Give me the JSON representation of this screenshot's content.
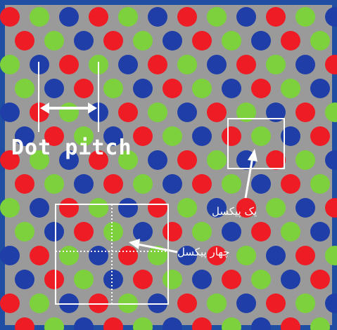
{
  "diagram": {
    "frame_color": "#1f4ea3",
    "background_color": "#9a9a9a",
    "dot_colors": {
      "red": "#ee1c24",
      "green": "#7dd13c",
      "blue": "#1f3ea8"
    },
    "annotation_color": "#ffffff",
    "labels": {
      "dot_pitch": "Dot pitch",
      "one_pixel": "یک پیکسل",
      "four_pixels": "چهار پیکسل"
    }
  }
}
